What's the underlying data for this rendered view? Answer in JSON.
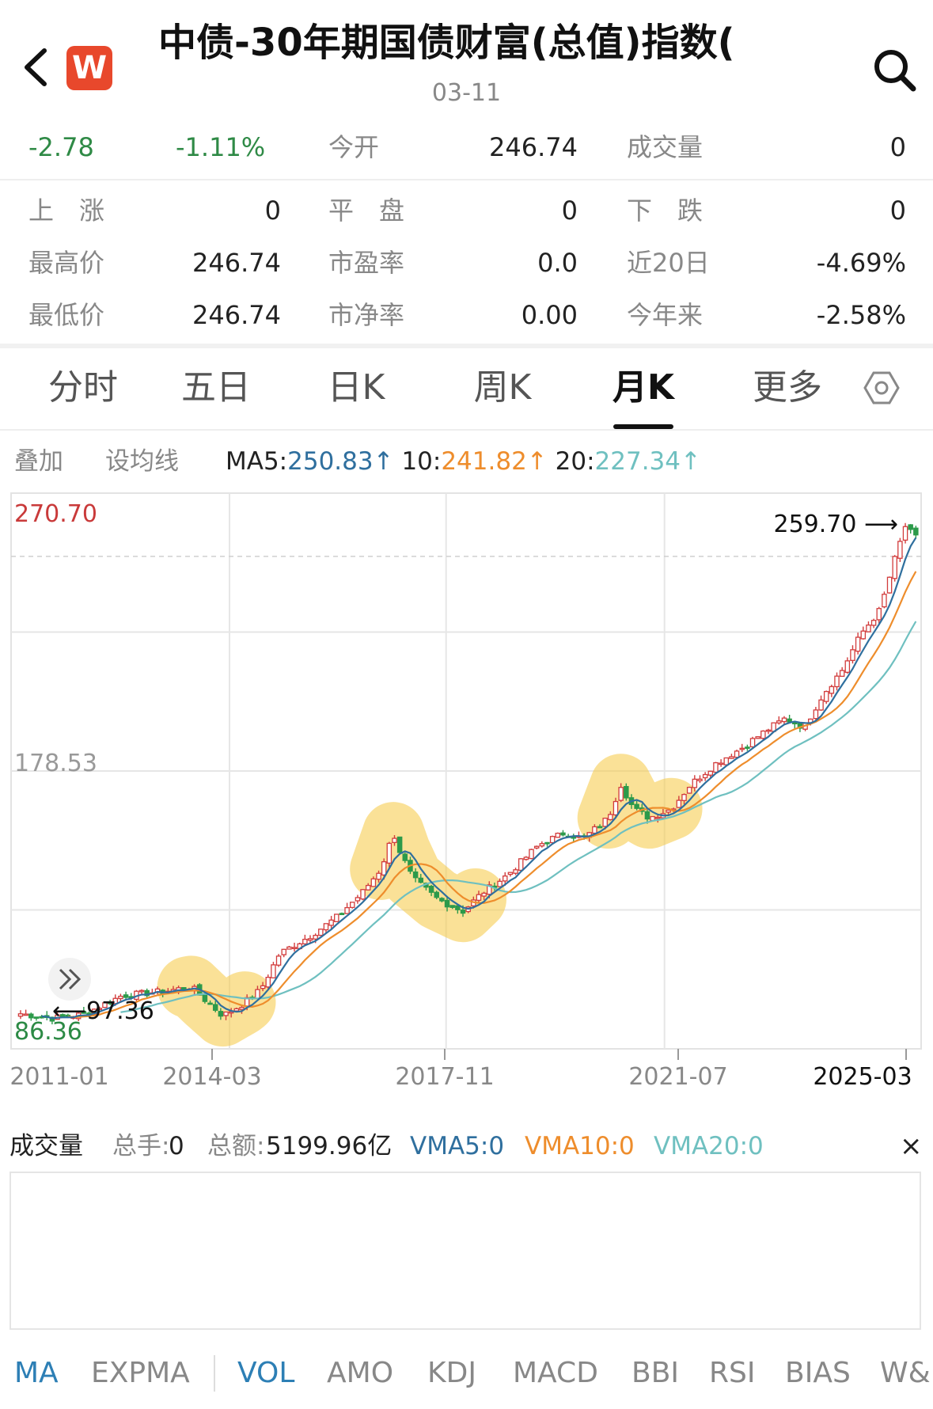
{
  "header": {
    "title": "中债-30年期国债财富(总值)指数(",
    "date": "03-11",
    "logo_text": "W"
  },
  "quote": {
    "change": "-2.78",
    "change_pct": "-1.11%",
    "open_label": "今开",
    "open": "246.74",
    "volume_label": "成交量",
    "volume": "0",
    "stats": [
      [
        {
          "label": "上　涨",
          "value": "0"
        },
        {
          "label": "平　盘",
          "value": "0"
        },
        {
          "label": "下　跌",
          "value": "0"
        }
      ],
      [
        {
          "label": "最高价",
          "value": "246.74"
        },
        {
          "label": "市盈率",
          "value": "0.0"
        },
        {
          "label": "近20日",
          "value": "-4.69%"
        }
      ],
      [
        {
          "label": "最低价",
          "value": "246.74"
        },
        {
          "label": "市净率",
          "value": "0.00"
        },
        {
          "label": "今年来",
          "value": "-2.58%"
        }
      ]
    ]
  },
  "tabs": [
    {
      "label": "分时"
    },
    {
      "label": "五日"
    },
    {
      "label": "日K"
    },
    {
      "label": "周K"
    },
    {
      "label": "月K",
      "active": true
    },
    {
      "label": "更多"
    }
  ],
  "ma_bar": {
    "overlay": "叠加",
    "set_ma": "设均线",
    "ma5_label": "MA5:",
    "ma5": "250.83↑",
    "ma10_label": "10:",
    "ma10": "241.82↑",
    "ma20_label": "20:",
    "ma20": "227.34↑",
    "colors": {
      "ma5": "#2f6f9e",
      "ma10": "#ee8d2c",
      "ma20": "#6fc0c0"
    }
  },
  "chart_data": {
    "type": "candlestick",
    "y_max_label": "270.70",
    "y_mid_label": "178.53",
    "y_min_label": "86.36",
    "ylim": [
      86.36,
      270.7
    ],
    "x_labels": [
      "2011-01",
      "2014-03",
      "2017-11",
      "2021-07",
      "2025-03"
    ],
    "high_marker": "259.70 ⟶",
    "low_marker": "⟵97.36",
    "high_value": 259.7,
    "low_value": 97.36,
    "close_series": [
      [
        2011.0,
        98
      ],
      [
        2011.5,
        96.5
      ],
      [
        2012.0,
        97.8
      ],
      [
        2012.6,
        104
      ],
      [
        2013.3,
        105.5
      ],
      [
        2013.7,
        107
      ],
      [
        2013.95,
        102
      ],
      [
        2014.2,
        97.36
      ],
      [
        2014.5,
        101
      ],
      [
        2014.8,
        106
      ],
      [
        2015.1,
        118
      ],
      [
        2015.6,
        124
      ],
      [
        2016.0,
        130
      ],
      [
        2016.4,
        138
      ],
      [
        2016.7,
        146
      ],
      [
        2016.9,
        158
      ],
      [
        2017.0,
        152
      ],
      [
        2017.2,
        143
      ],
      [
        2017.6,
        136
      ],
      [
        2018.0,
        132
      ],
      [
        2018.3,
        138
      ],
      [
        2018.7,
        144
      ],
      [
        2019.2,
        154
      ],
      [
        2019.6,
        158
      ],
      [
        2019.9,
        156
      ],
      [
        2020.3,
        163
      ],
      [
        2020.5,
        174
      ],
      [
        2020.7,
        166
      ],
      [
        2020.95,
        163
      ],
      [
        2021.3,
        166
      ],
      [
        2021.6,
        174
      ],
      [
        2022.0,
        181
      ],
      [
        2022.4,
        186
      ],
      [
        2022.8,
        192
      ],
      [
        2023.1,
        196
      ],
      [
        2023.4,
        193
      ],
      [
        2023.7,
        204
      ],
      [
        2024.0,
        212
      ],
      [
        2024.3,
        224
      ],
      [
        2024.6,
        232
      ],
      [
        2024.85,
        250
      ],
      [
        2025.0,
        259.7
      ],
      [
        2025.15,
        256
      ]
    ]
  },
  "volume": {
    "title": "成交量",
    "total_hands_label": "总手:",
    "total_hands": "0",
    "total_amount_label": "总额:",
    "total_amount": "5199.96亿",
    "vma5": "VMA5:0",
    "vma10": "VMA10:0",
    "vma20": "VMA20:0",
    "close_glyph": "×"
  },
  "indicators": [
    "MA",
    "EXPMA",
    "VOL",
    "AMO",
    "KDJ",
    "MACD",
    "BBI",
    "RSI",
    "BIAS",
    "W&"
  ]
}
